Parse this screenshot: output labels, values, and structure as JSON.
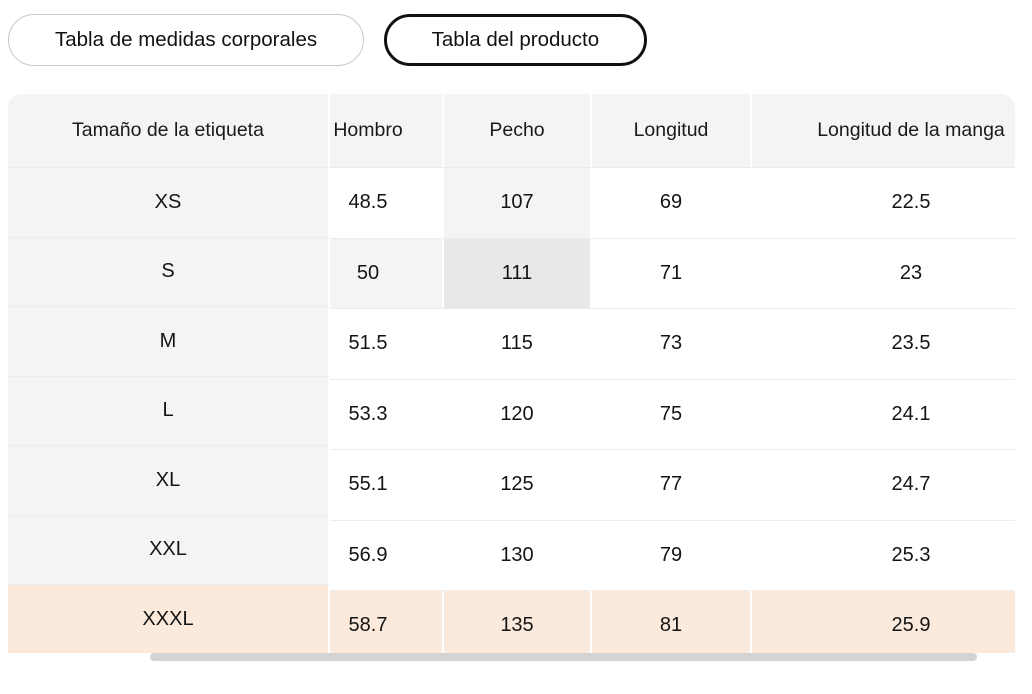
{
  "tabs": [
    {
      "label": "Tabla de medidas corporales",
      "active": false
    },
    {
      "label": "Tabla del producto",
      "active": true
    }
  ],
  "table": {
    "columns": [
      "Tamaño de la etiqueta",
      "Hombro",
      "Pecho",
      "Longitud",
      "Longitud de la manga"
    ],
    "rows": [
      {
        "label": "XS",
        "values": [
          "48.5",
          "107",
          "69",
          "22.5"
        ]
      },
      {
        "label": "S",
        "values": [
          "50",
          "111",
          "71",
          "23"
        ]
      },
      {
        "label": "M",
        "values": [
          "51.5",
          "115",
          "73",
          "23.5"
        ]
      },
      {
        "label": "L",
        "values": [
          "53.3",
          "120",
          "75",
          "24.1"
        ]
      },
      {
        "label": "XL",
        "values": [
          "55.1",
          "125",
          "77",
          "24.7"
        ]
      },
      {
        "label": "XXL",
        "values": [
          "56.9",
          "130",
          "79",
          "25.3"
        ]
      },
      {
        "label": "XXXL",
        "values": [
          "58.7",
          "135",
          "81",
          "25.9"
        ]
      }
    ],
    "highlight_cells": {
      "light": [
        {
          "row": 0,
          "col": 2
        },
        {
          "row": 1,
          "col": 1
        }
      ],
      "dark": [
        {
          "row": 1,
          "col": 2
        }
      ],
      "accent_row": 6
    }
  },
  "colors": {
    "header_bg": "#f4f4f5",
    "label_col_bg": "#f4f4f5",
    "highlight_light": "#f4f4f5",
    "highlight_dark": "#e8e8ea",
    "accent_row_bg": "#fbeadb",
    "scrollbar_thumb": "#d3d3d3",
    "tab_active_border": "#111111",
    "tab_border": "#c8c8c8"
  }
}
